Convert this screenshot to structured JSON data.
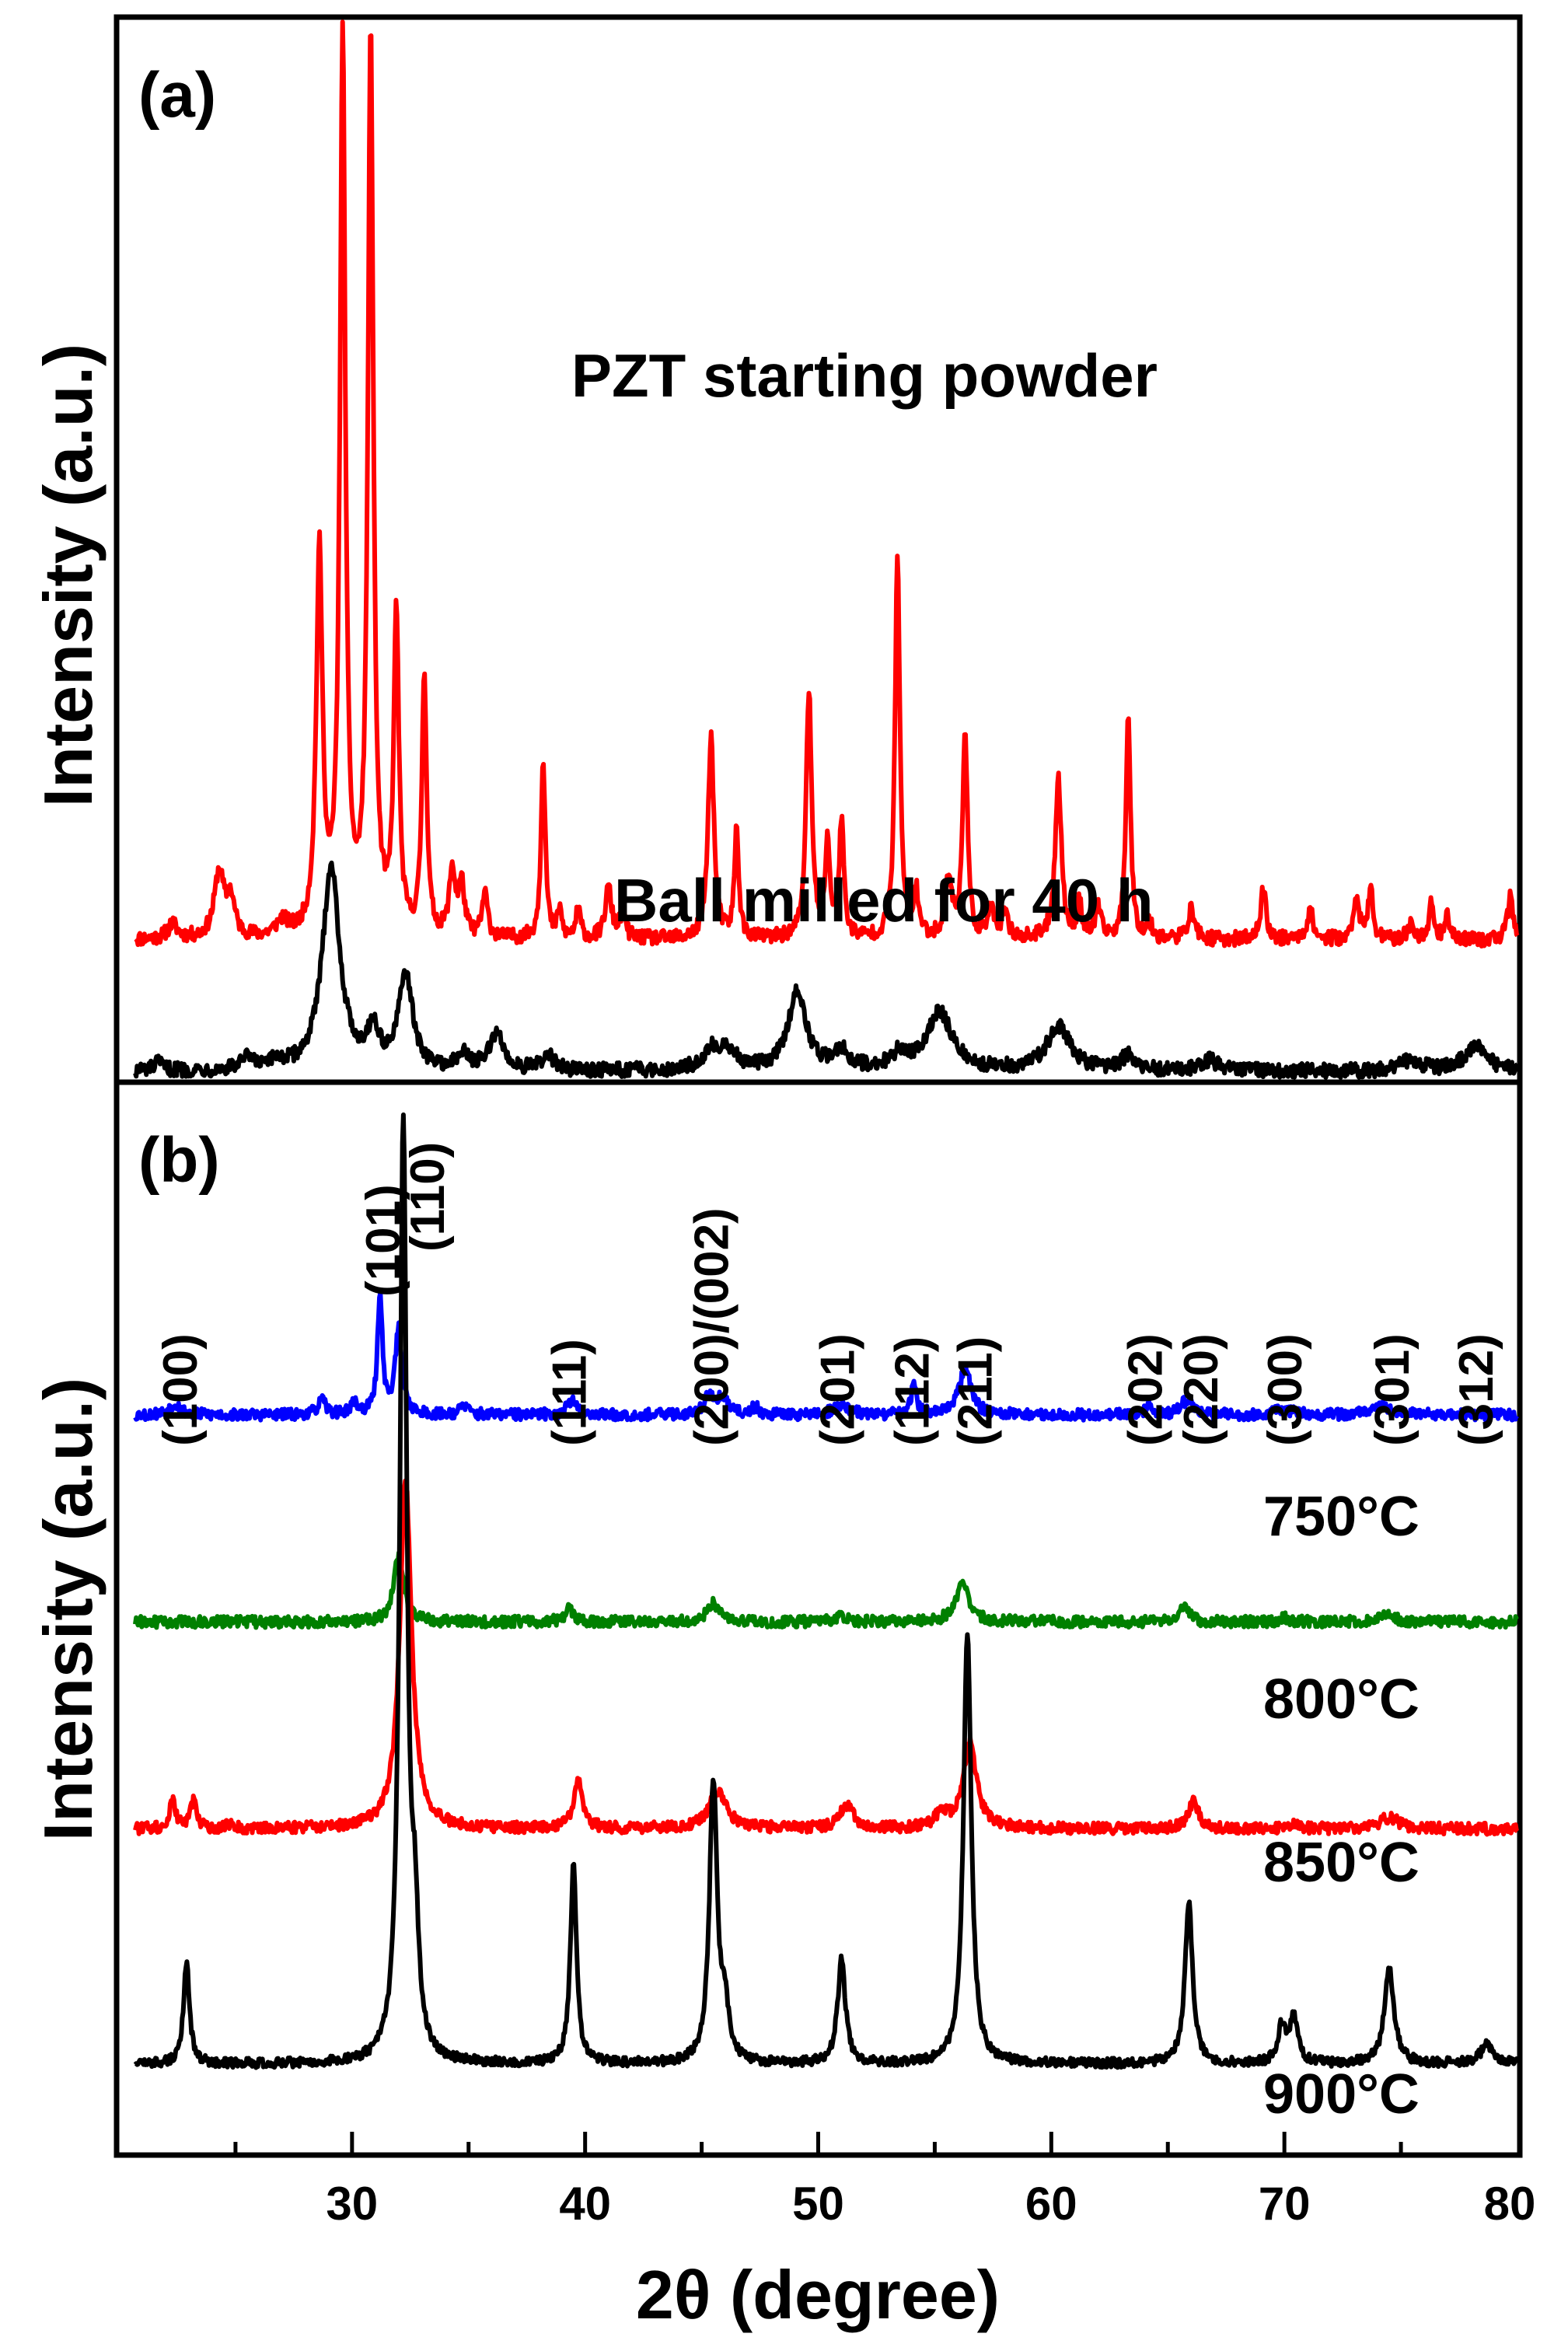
{
  "chart_data": [
    {
      "panel": "(a)",
      "type": "line",
      "ylabel": "Intensity (a.u.)",
      "xlim": [
        20,
        80
      ],
      "series": [
        {
          "name": "PZT starting powder",
          "color": "#ff0000",
          "baseline": 0.18,
          "noise": 0.01,
          "peaks": [
            [
              22.3,
              0.02,
              0.25
            ],
            [
              24.3,
              0.09,
              0.25
            ],
            [
              24.8,
              0.05,
              0.2
            ],
            [
              27.0,
              0.02,
              0.3
            ],
            [
              28.6,
              0.52,
              0.16
            ],
            [
              29.6,
              1.22,
              0.14
            ],
            [
              30.8,
              1.23,
              0.14
            ],
            [
              31.9,
              0.44,
              0.13
            ],
            [
              33.1,
              0.36,
              0.12
            ],
            [
              34.3,
              0.09,
              0.15
            ],
            [
              34.7,
              0.07,
              0.15
            ],
            [
              35.7,
              0.06,
              0.14
            ],
            [
              38.2,
              0.25,
              0.11
            ],
            [
              38.9,
              0.04,
              0.1
            ],
            [
              39.7,
              0.04,
              0.12
            ],
            [
              41.0,
              0.07,
              0.16
            ],
            [
              41.6,
              0.03,
              0.16
            ],
            [
              45.4,
              0.28,
              0.15
            ],
            [
              46.5,
              0.15,
              0.11
            ],
            [
              49.6,
              0.34,
              0.14
            ],
            [
              50.4,
              0.13,
              0.12
            ],
            [
              51.0,
              0.16,
              0.12
            ],
            [
              53.4,
              0.53,
              0.12
            ],
            [
              54.2,
              0.06,
              0.14
            ],
            [
              55.6,
              0.08,
              0.18
            ],
            [
              56.3,
              0.29,
              0.12
            ],
            [
              57.4,
              0.04,
              0.14
            ],
            [
              58.0,
              0.03,
              0.2
            ],
            [
              60.3,
              0.22,
              0.16
            ],
            [
              61.2,
              0.05,
              0.12
            ],
            [
              62.0,
              0.04,
              0.15
            ],
            [
              63.3,
              0.31,
              0.12
            ],
            [
              64.2,
              0.02,
              0.15
            ],
            [
              66.0,
              0.04,
              0.18
            ],
            [
              69.1,
              0.07,
              0.14
            ],
            [
              71.1,
              0.04,
              0.16
            ],
            [
              73.1,
              0.06,
              0.13
            ],
            [
              73.7,
              0.07,
              0.12
            ],
            [
              75.4,
              0.02,
              0.15
            ],
            [
              76.3,
              0.05,
              0.12
            ],
            [
              77.0,
              0.03,
              0.15
            ],
            [
              79.7,
              0.06,
              0.14
            ]
          ]
        },
        {
          "name": "Ball milled for 40 h",
          "color": "#000000",
          "baseline": 0.0,
          "noise": 0.01,
          "peaks": [
            [
              21.7,
              0.01,
              0.25
            ],
            [
              25.5,
              0.015,
              0.3
            ],
            [
              26.8,
              0.01,
              0.3
            ],
            [
              29.1,
              0.28,
              0.45
            ],
            [
              30.9,
              0.05,
              0.3
            ],
            [
              32.3,
              0.13,
              0.35
            ],
            [
              34.8,
              0.02,
              0.3
            ],
            [
              36.2,
              0.05,
              0.35
            ],
            [
              38.4,
              0.02,
              0.3
            ],
            [
              45.5,
              0.03,
              0.5
            ],
            [
              46.2,
              0.02,
              0.4
            ],
            [
              49.1,
              0.11,
              0.45
            ],
            [
              51.0,
              0.025,
              0.4
            ],
            [
              53.5,
              0.02,
              0.4
            ],
            [
              55.2,
              0.08,
              0.65
            ],
            [
              60.3,
              0.06,
              0.6
            ],
            [
              63.3,
              0.02,
              0.35
            ],
            [
              66.8,
              0.015,
              0.4
            ],
            [
              75.4,
              0.015,
              0.5
            ],
            [
              78.2,
              0.035,
              0.55
            ]
          ]
        }
      ],
      "annotations": [
        "(a)"
      ]
    },
    {
      "panel": "(b)",
      "type": "line",
      "ylabel": "Intensity (a.u.)",
      "xlabel": "2θ (degree)",
      "xlim": [
        20,
        80
      ],
      "xticks": [
        30,
        40,
        50,
        60,
        70,
        80
      ],
      "series": [
        {
          "name": "750°C",
          "color": "#0000ff",
          "baseline": 0.69,
          "noise": 0.006,
          "peaks": [
            [
              22.4,
              0.012,
              0.3
            ],
            [
              28.7,
              0.015,
              0.2
            ],
            [
              30.1,
              0.012,
              0.2
            ],
            [
              31.2,
              0.13,
              0.12
            ],
            [
              32.0,
              0.09,
              0.18
            ],
            [
              34.8,
              0.01,
              0.2
            ],
            [
              39.4,
              0.015,
              0.25
            ],
            [
              45.3,
              0.02,
              0.25
            ],
            [
              45.9,
              0.018,
              0.25
            ],
            [
              47.3,
              0.008,
              0.2
            ],
            [
              51.0,
              0.01,
              0.4
            ],
            [
              54.1,
              0.03,
              0.15
            ],
            [
              56.3,
              0.05,
              0.3
            ],
            [
              64.2,
              0.01,
              0.2
            ],
            [
              65.8,
              0.015,
              0.3
            ],
            [
              70.0,
              0.006,
              0.4
            ],
            [
              74.3,
              0.009,
              0.5
            ]
          ]
        },
        {
          "name": "800°C",
          "color": "#008000",
          "baseline": 0.47,
          "noise": 0.006,
          "peaks": [
            [
              32.0,
              0.07,
              0.25
            ],
            [
              39.3,
              0.015,
              0.2
            ],
            [
              45.5,
              0.02,
              0.3
            ],
            [
              51.0,
              0.007,
              0.3
            ],
            [
              56.2,
              0.04,
              0.35
            ],
            [
              65.7,
              0.015,
              0.25
            ],
            [
              70.0,
              0.004,
              0.3
            ],
            [
              74.3,
              0.01,
              0.35
            ]
          ]
        },
        {
          "name": "850°C",
          "color": "#ff0000",
          "baseline": 0.25,
          "noise": 0.006,
          "peaks": [
            [
              22.3,
              0.03,
              0.15
            ],
            [
              23.2,
              0.03,
              0.15
            ],
            [
              24.7,
              0.005,
              0.2
            ],
            [
              32.3,
              0.37,
              0.3
            ],
            [
              39.7,
              0.05,
              0.22
            ],
            [
              45.7,
              0.04,
              0.45
            ],
            [
              51.2,
              0.025,
              0.35
            ],
            [
              55.3,
              0.015,
              0.3
            ],
            [
              56.5,
              0.09,
              0.35
            ],
            [
              66.1,
              0.03,
              0.25
            ],
            [
              70.3,
              0.005,
              0.3
            ],
            [
              74.5,
              0.012,
              0.5
            ]
          ]
        },
        {
          "name": "900°C",
          "color": "#000000",
          "baseline": 0.0,
          "noise": 0.005,
          "peaks": [
            [
              22.9,
              0.11,
              0.15
            ],
            [
              32.2,
              1.0,
              0.18
            ],
            [
              32.7,
              0.12,
              0.18
            ],
            [
              39.5,
              0.21,
              0.16
            ],
            [
              45.5,
              0.3,
              0.2
            ],
            [
              46.0,
              0.05,
              0.2
            ],
            [
              51.0,
              0.11,
              0.2
            ],
            [
              56.4,
              0.46,
              0.2
            ],
            [
              65.9,
              0.17,
              0.2
            ],
            [
              69.9,
              0.04,
              0.2
            ],
            [
              70.4,
              0.05,
              0.2
            ],
            [
              74.5,
              0.1,
              0.25
            ],
            [
              78.7,
              0.02,
              0.35
            ]
          ]
        }
      ],
      "hkl_labels": [
        {
          "label": "(100)",
          "x": 22.6
        },
        {
          "label": "(101)",
          "x": 31.3
        },
        {
          "label": "(110)",
          "x": 33.2
        },
        {
          "label": "(111)",
          "x": 39.3
        },
        {
          "label": "(200)/(002)",
          "x": 45.4
        },
        {
          "label": "(201)",
          "x": 50.8
        },
        {
          "label": "(112)",
          "x": 54.0
        },
        {
          "label": "(211)",
          "x": 56.7
        },
        {
          "label": "(202)",
          "x": 64.0
        },
        {
          "label": "(220)",
          "x": 66.4
        },
        {
          "label": "(300)",
          "x": 70.0
        },
        {
          "label": "(301)",
          "x": 74.6
        },
        {
          "label": "(312)",
          "x": 78.2
        }
      ],
      "annotations": [
        "(b)"
      ]
    }
  ]
}
